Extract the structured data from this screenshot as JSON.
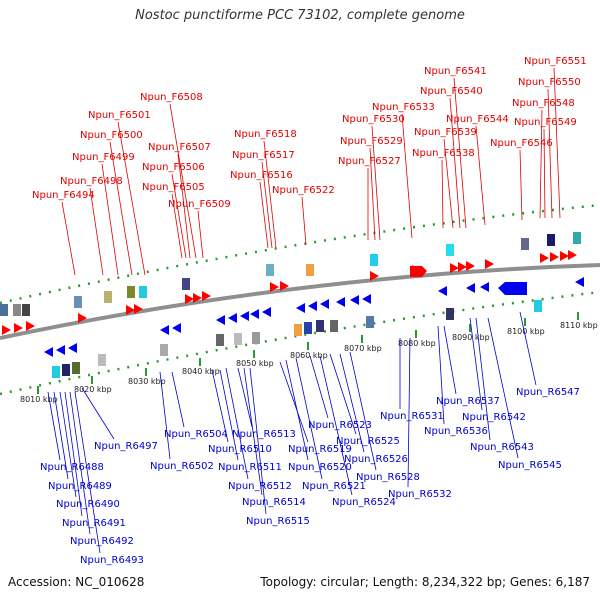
{
  "title": "Nostoc punctiforme PCC 73102, complete genome",
  "footer": {
    "accession": "Accession: NC_010628",
    "info": "Topology: circular; Length: 8,234,322 bp; Genes: 6,187"
  },
  "colors": {
    "forward": "#ff0000",
    "reverse": "#0000ff",
    "backbone": "#999999",
    "dots": "#228b22"
  },
  "ticks": [
    "8010 kbp",
    "8020 kbp",
    "8030 kbp",
    "8040 kbp",
    "8050 kbp",
    "8060 kbp",
    "8070 kbp",
    "8080 kbp",
    "8090 kbp",
    "8100 kbp",
    "8110 kbp"
  ],
  "forward_genes": [
    "Npun_F6494",
    "Npun_F6498",
    "Npun_F6499",
    "Npun_F6500",
    "Npun_F6501",
    "Npun_F6505",
    "Npun_F6506",
    "Npun_F6507",
    "Npun_F6508",
    "Npun_F6509",
    "Npun_F6516",
    "Npun_F6517",
    "Npun_F6518",
    "Npun_F6522",
    "Npun_F6527",
    "Npun_F6529",
    "Npun_F6530",
    "Npun_F6533",
    "Npun_F6538",
    "Npun_F6539",
    "Npun_F6540",
    "Npun_F6541",
    "Npun_F6544",
    "Npun_F6546",
    "Npun_F6548",
    "Npun_F6549",
    "Npun_F6550",
    "Npun_F6551"
  ],
  "reverse_genes": [
    "Npun_R6488",
    "Npun_R6489",
    "Npun_R6490",
    "Npun_R6491",
    "Npun_R6492",
    "Npun_R6493",
    "Npun_R6497",
    "Npun_R6502",
    "Npun_R6504",
    "Npun_R6510",
    "Npun_R6511",
    "Npun_R6512",
    "Npun_R6513",
    "Npun_R6514",
    "Npun_R6515",
    "Npun_R6519",
    "Npun_R6520",
    "Npun_R6521",
    "Npun_R6523",
    "Npun_R6524",
    "Npun_R6525",
    "Npun_R6526",
    "Npun_R6528",
    "Npun_R6531",
    "Npun_R6532",
    "Npun_R6536",
    "Npun_R6537",
    "Npun_R6542",
    "Npun_R6543",
    "Npun_R6545",
    "Npun_R6547"
  ]
}
